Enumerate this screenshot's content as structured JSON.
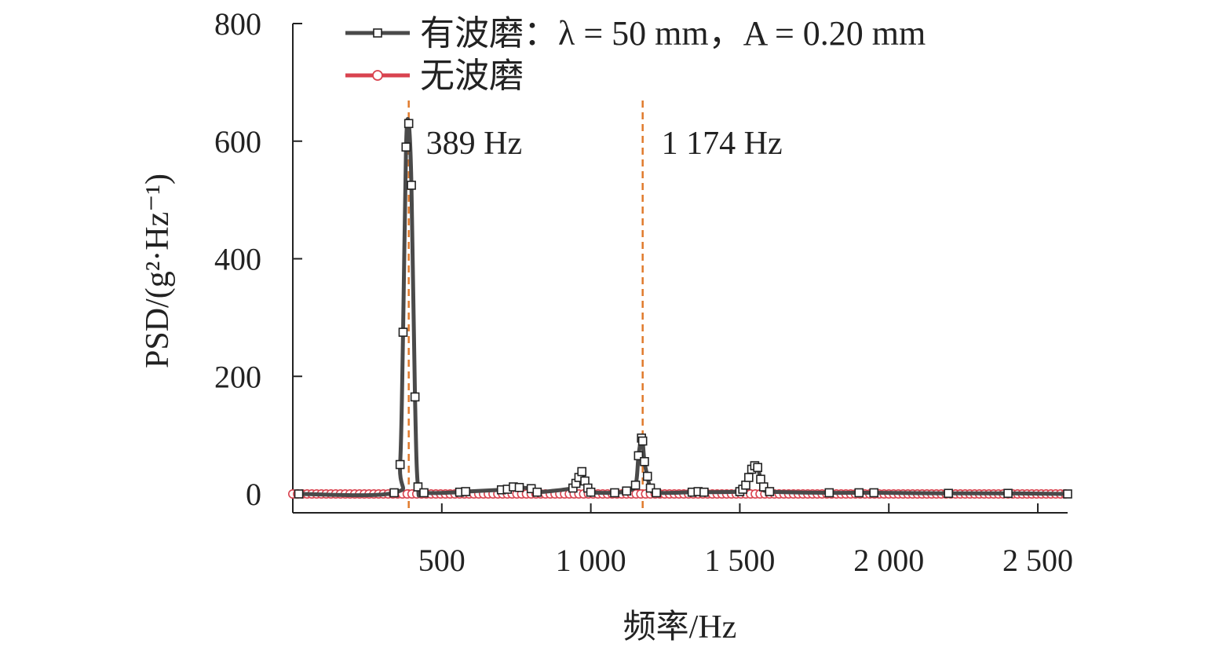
{
  "chart_data": {
    "type": "line",
    "title": "",
    "xlabel": "频率/Hz",
    "ylabel": "PSD/(g²·Hz⁻¹)",
    "xlim": [
      0,
      2600
    ],
    "ylim": [
      -30,
      800
    ],
    "xticks": [
      500,
      1000,
      1500,
      2000,
      2500
    ],
    "xtick_labels": [
      "500",
      "1 000",
      "1 500",
      "2 000",
      "2 500"
    ],
    "yticks": [
      0,
      200,
      400,
      600,
      800
    ],
    "ytick_labels": [
      "0",
      "200",
      "400",
      "600",
      "800"
    ],
    "grid": false,
    "legend_position": "top-left",
    "annotations": [
      {
        "x": 389,
        "label": "389 Hz"
      },
      {
        "x": 1174,
        "label": "1 174 Hz"
      }
    ],
    "series": [
      {
        "name": "有波磨：λ = 50 mm，A = 0.20 mm",
        "color": "#4a4a4a",
        "marker": "square",
        "x": [
          20,
          340,
          360,
          370,
          380,
          389,
          398,
          410,
          420,
          440,
          560,
          580,
          700,
          720,
          740,
          760,
          800,
          820,
          940,
          950,
          960,
          970,
          980,
          990,
          1000,
          1080,
          1120,
          1150,
          1160,
          1170,
          1174,
          1180,
          1190,
          1200,
          1220,
          1340,
          1360,
          1380,
          1500,
          1510,
          1520,
          1530,
          1540,
          1550,
          1560,
          1570,
          1580,
          1600,
          1800,
          1900,
          1950,
          2200,
          2400,
          2600
        ],
        "y": [
          0,
          2,
          50,
          275,
          590,
          630,
          525,
          165,
          12,
          2,
          3,
          4,
          7,
          8,
          12,
          11,
          9,
          3,
          10,
          18,
          28,
          38,
          22,
          10,
          3,
          2,
          5,
          15,
          65,
          95,
          90,
          55,
          30,
          10,
          2,
          3,
          4,
          3,
          4,
          8,
          15,
          28,
          42,
          48,
          45,
          25,
          12,
          4,
          2,
          2,
          2,
          1,
          1,
          0
        ]
      },
      {
        "name": "无波磨",
        "color": "#d9434f",
        "marker": "circle",
        "x": [
          0,
          2600
        ],
        "y": [
          0,
          0
        ]
      }
    ]
  }
}
